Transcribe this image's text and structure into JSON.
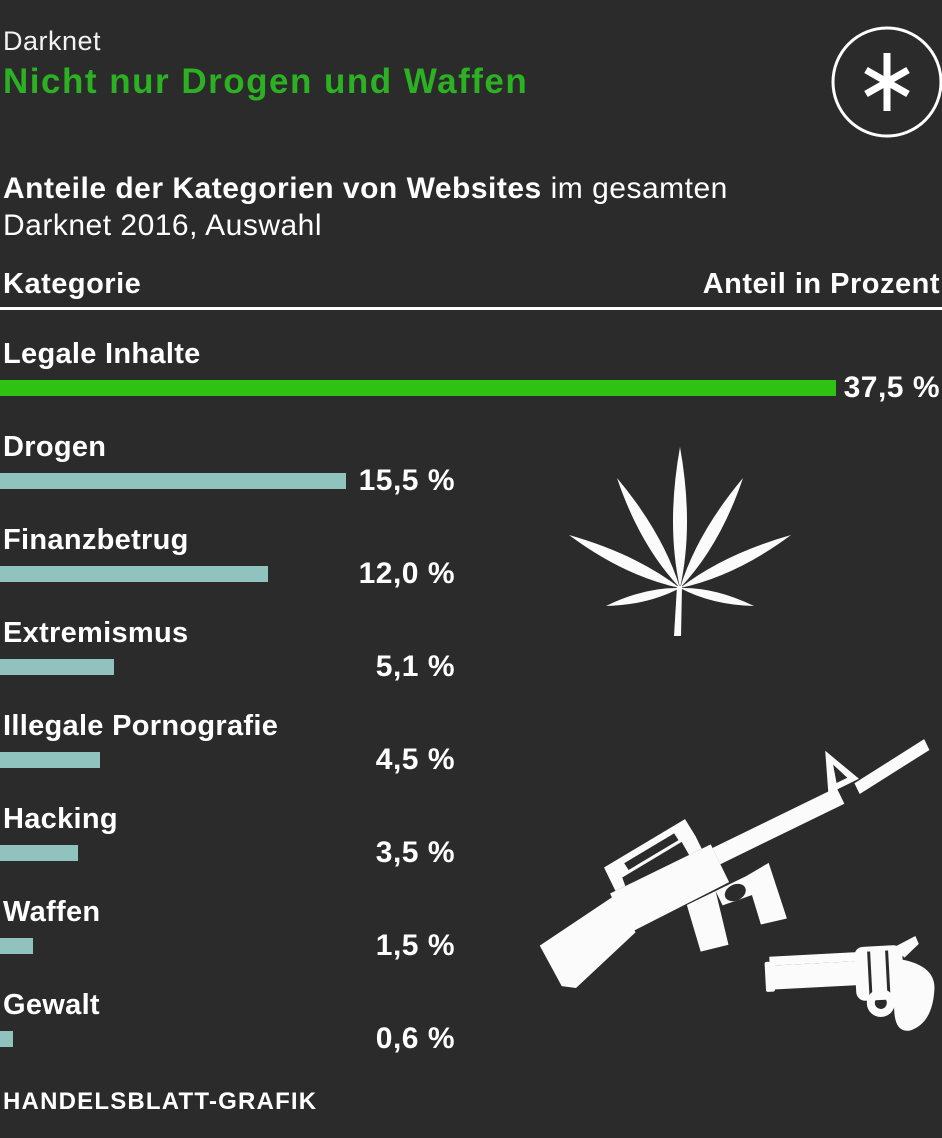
{
  "colors": {
    "background": "#2b2b2b",
    "title_green": "#2cb123",
    "bar_green": "#2ec312",
    "bar_teal": "#90c2be",
    "text_white": "#ffffff",
    "divider_white": "#ffffff"
  },
  "header": {
    "kicker": "Darknet",
    "title": "Nicht nur Drogen und Waffen",
    "logo_icon": "asterisk-circle-icon"
  },
  "subtitle": {
    "bold": "Anteile der Kategorien von Websites",
    "regular": " im gesamten",
    "line2": "Darknet 2016, Auswahl"
  },
  "table_header": {
    "left": "Kategorie",
    "right": "Anteil in Prozent"
  },
  "chart_data": {
    "type": "bar",
    "orientation": "horizontal",
    "title": "Nicht nur Drogen und Waffen",
    "subtitle": "Anteile der Kategorien von Websites im gesamten Darknet 2016, Auswahl",
    "unit": "Prozent",
    "categories": [
      "Legale Inhalte",
      "Drogen",
      "Finanzbetrug",
      "Extremismus",
      "Illegale Pornografie",
      "Hacking",
      "Waffen",
      "Gewalt"
    ],
    "values": [
      37.5,
      15.5,
      12.0,
      5.1,
      4.5,
      3.5,
      1.5,
      0.6
    ],
    "value_labels": [
      "37,5 %",
      "15,5 %",
      "12,0 %",
      "5,1 %",
      "4,5 %",
      "3,5 %",
      "1,5 %",
      "0,6 %"
    ],
    "highlight_index": 0,
    "xlim": [
      0,
      42.3
    ],
    "grid": false,
    "legend": false
  },
  "icons": {
    "logo": "asterisk-circle-icon",
    "drugs": "cannabis-leaf-icon",
    "weapon_rifle": "rifle-icon",
    "weapon_revolver": "revolver-icon"
  },
  "footer": {
    "credit": "HANDELSBLATT-GRAFIK"
  }
}
